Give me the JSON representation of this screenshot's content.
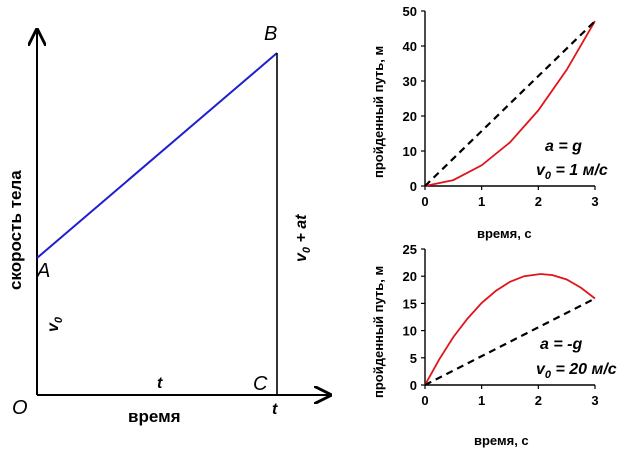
{
  "colors": {
    "axis": "#000000",
    "line_blue": "#1f1fd1",
    "curve_red": "#e0151c",
    "dashed": "#000000"
  },
  "chart_data": [
    {
      "type": "line",
      "xlabel": "время",
      "ylabel": "скорость тела",
      "points": {
        "A": {
          "label": "A",
          "x": 0,
          "v": "v0"
        },
        "B": {
          "label": "B",
          "x": "t",
          "v": "v0 + at"
        },
        "C": {
          "label": "C",
          "x": "t",
          "v": 0
        },
        "O": {
          "label": "O",
          "x": 0,
          "v": 0
        }
      },
      "annotations": {
        "origin": "O",
        "v0": "v",
        "v0_sub": "0",
        "v0_plus_at": "v",
        "v0_plus_at_sub": "0",
        "v0_plus_at_rest": " + at",
        "t_mid": "t",
        "t_axis": "t"
      },
      "series": [
        {
          "values": [
            [
              0,
              0.35
            ],
            [
              1,
              1.0
            ]
          ]
        }
      ],
      "ylim": [
        0,
        1.0
      ],
      "xlim": [
        0,
        1.0
      ]
    },
    {
      "type": "line",
      "xlabel": "время, с",
      "ylabel": "пройденный путь, м",
      "xlim": [
        0,
        3
      ],
      "ylim": [
        0,
        50
      ],
      "xticks": [
        0,
        1,
        2,
        3
      ],
      "yticks": [
        0,
        10,
        20,
        30,
        40,
        50
      ],
      "annotation": {
        "a_label": "a  = g",
        "v0_prefix": "v",
        "v0_sub": "0",
        "v0_rest": " = 1 м/с"
      },
      "series": [
        {
          "style": "solid",
          "color": "red",
          "x": [
            0,
            0.5,
            1,
            1.5,
            2,
            2.5,
            3
          ],
          "y": [
            0,
            1.7,
            5.9,
            12.5,
            21.6,
            33.2,
            47.1
          ]
        },
        {
          "style": "dashed",
          "color": "black",
          "x": [
            0,
            3
          ],
          "y": [
            0,
            47.1
          ]
        }
      ]
    },
    {
      "type": "line",
      "xlabel": "время, с",
      "ylabel": "пройденный путь, м",
      "xlim": [
        0,
        3
      ],
      "ylim": [
        0,
        25
      ],
      "xticks": [
        0,
        1,
        2,
        3
      ],
      "yticks": [
        0,
        5,
        10,
        15,
        20,
        25
      ],
      "annotation": {
        "a_label": "a  = -g",
        "v0_prefix": "v",
        "v0_sub": "0",
        "v0_rest": " = 20 м/с"
      },
      "series": [
        {
          "style": "solid",
          "color": "red",
          "x": [
            0,
            0.25,
            0.5,
            0.75,
            1,
            1.25,
            1.5,
            1.75,
            2.04,
            2.25,
            2.5,
            2.75,
            3
          ],
          "y": [
            0,
            4.7,
            8.8,
            12.2,
            15.1,
            17.3,
            18.97,
            20.0,
            20.4,
            20.2,
            19.4,
            17.9,
            15.9
          ]
        },
        {
          "style": "dashed",
          "color": "black",
          "x": [
            0,
            3
          ],
          "y": [
            0,
            15.9
          ]
        }
      ]
    }
  ]
}
